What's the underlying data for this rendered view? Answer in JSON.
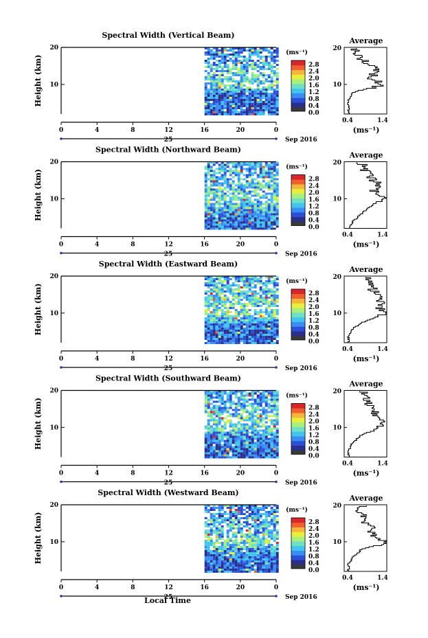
{
  "figure": {
    "xlabel": "Local Time",
    "colorbar_unit": "(ms⁻¹)",
    "colorbar_ticks": [
      "2.8",
      "2.4",
      "2.0",
      "1.6",
      "1.2",
      "0.8",
      "0.4",
      "0.0"
    ],
    "colors": [
      "#2b2f8c",
      "#2b4fd6",
      "#3a8df2",
      "#41c5f0",
      "#6fe0c4",
      "#a9ef7c",
      "#e7ef3c",
      "#f5b53a",
      "#f0602e",
      "#d7262c"
    ],
    "date_day": "25",
    "date_month": "Sep 2016"
  },
  "chart_data": [
    {
      "type": "heatmap",
      "title": "Spectral Width (Vertical Beam)",
      "ylabel": "Height (km)",
      "xticks": [
        "0",
        "4",
        "8",
        "12",
        "16",
        "20",
        "0"
      ],
      "xlim": [
        0,
        24
      ],
      "ylim": [
        2,
        20
      ],
      "yticks": [
        "20",
        "10"
      ],
      "data_start_hour": 16,
      "profile": {
        "title": "Average",
        "xlabel": "(ms⁻¹)",
        "xlim": [
          0.4,
          1.4
        ],
        "xticks": [
          "0.4",
          "1.4"
        ],
        "height": [
          2,
          4,
          6,
          8,
          10,
          12,
          14,
          16,
          18,
          20
        ],
        "value": [
          0.5,
          0.5,
          0.5,
          0.6,
          1.3,
          1.0,
          1.2,
          0.9,
          0.7,
          0.6
        ]
      }
    },
    {
      "type": "heatmap",
      "title": "Spectral Width (Northward Beam)",
      "ylabel": "Height (km)",
      "xticks": [
        "0",
        "4",
        "8",
        "12",
        "16",
        "20",
        "0"
      ],
      "xlim": [
        0,
        24
      ],
      "ylim": [
        2,
        20
      ],
      "yticks": [
        "20",
        "10"
      ],
      "data_start_hour": 16,
      "profile": {
        "title": "Average",
        "xlabel": "(ms⁻¹)",
        "xlim": [
          0.4,
          1.4
        ],
        "xticks": [
          "0.4",
          "1.4"
        ],
        "height": [
          2,
          4,
          6,
          8,
          10,
          12,
          14,
          16,
          18,
          20
        ],
        "value": [
          0.5,
          0.6,
          0.8,
          1.0,
          1.3,
          1.1,
          1.2,
          1.0,
          0.9,
          0.8
        ]
      }
    },
    {
      "type": "heatmap",
      "title": "Spectral Width (Eastward Beam)",
      "ylabel": "Height (km)",
      "xticks": [
        "0",
        "4",
        "8",
        "12",
        "16",
        "20",
        "0"
      ],
      "xlim": [
        0,
        24
      ],
      "ylim": [
        2,
        20
      ],
      "yticks": [
        "20",
        "10"
      ],
      "data_start_hour": 16,
      "profile": {
        "title": "Average",
        "xlabel": "(ms⁻¹)",
        "xlim": [
          0.4,
          1.4
        ],
        "xticks": [
          "0.4",
          "1.4"
        ],
        "height": [
          2,
          4,
          6,
          8,
          10,
          12,
          14,
          16,
          18,
          20
        ],
        "value": [
          0.5,
          0.5,
          0.6,
          0.9,
          1.4,
          1.2,
          1.3,
          1.1,
          1.0,
          1.0
        ]
      }
    },
    {
      "type": "heatmap",
      "title": "Spectral Width (Southward Beam)",
      "ylabel": "Height (km)",
      "xticks": [
        "0",
        "4",
        "8",
        "12",
        "16",
        "20",
        "0"
      ],
      "xlim": [
        0,
        24
      ],
      "ylim": [
        2,
        20
      ],
      "yticks": [
        "20",
        "10"
      ],
      "data_start_hour": 16,
      "profile": {
        "title": "Average",
        "xlabel": "(ms⁻¹)",
        "xlim": [
          0.4,
          1.4
        ],
        "xticks": [
          "0.4",
          "1.4"
        ],
        "height": [
          2,
          4,
          6,
          8,
          10,
          12,
          14,
          16,
          18,
          20
        ],
        "value": [
          0.5,
          0.5,
          0.6,
          0.8,
          1.2,
          1.3,
          1.1,
          1.0,
          0.9,
          0.8
        ]
      }
    },
    {
      "type": "heatmap",
      "title": "Spectral Width (Westward Beam)",
      "ylabel": "Height (km)",
      "xticks": [
        "0",
        "4",
        "8",
        "12",
        "16",
        "20",
        "0"
      ],
      "xlim": [
        0,
        24
      ],
      "ylim": [
        2,
        20
      ],
      "yticks": [
        "20",
        "10"
      ],
      "data_start_hour": 16,
      "profile": {
        "title": "Average",
        "xlabel": "(ms⁻¹)",
        "xlim": [
          0.4,
          1.4
        ],
        "xticks": [
          "0.4",
          "1.4"
        ],
        "height": [
          2,
          4,
          6,
          8,
          10,
          12,
          14,
          16,
          18,
          20
        ],
        "value": [
          0.5,
          0.5,
          0.6,
          0.8,
          1.4,
          1.1,
          1.0,
          0.9,
          0.8,
          0.8
        ]
      }
    }
  ]
}
